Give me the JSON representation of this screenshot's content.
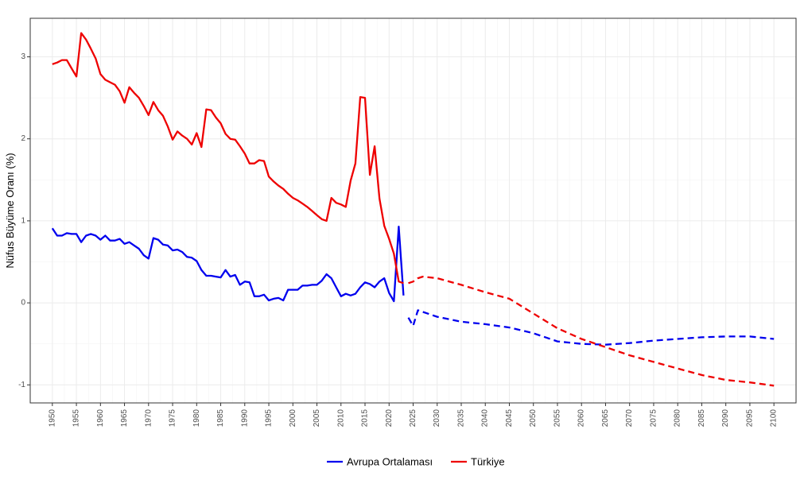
{
  "chart_data": {
    "type": "line",
    "ylabel": "Nüfus Büyüme Oranı (%)",
    "xlabel": "",
    "xlim": [
      1945.4,
      2104.6
    ],
    "ylim": [
      -1.22,
      3.47
    ],
    "x_ticks": [
      1950,
      1955,
      1960,
      1965,
      1970,
      1975,
      1980,
      1985,
      1990,
      1995,
      2000,
      2005,
      2010,
      2015,
      2020,
      2025,
      2030,
      2035,
      2040,
      2045,
      2050,
      2055,
      2060,
      2065,
      2070,
      2075,
      2080,
      2085,
      2090,
      2095,
      2100
    ],
    "x_tick_labels": [
      "1950",
      "1955",
      "1960",
      "1965",
      "1970",
      "1975",
      "1980",
      "1985",
      "1990",
      "1995",
      "2000",
      "2005",
      "2010",
      "2015",
      "2020",
      "2025",
      "2030",
      "2035",
      "2040",
      "2045",
      "2050",
      "2055",
      "2060",
      "2065",
      "2070",
      "2075",
      "2080",
      "2085",
      "2090",
      "2095",
      "2100"
    ],
    "y_ticks": [
      -1,
      0,
      1,
      2,
      3
    ],
    "y_tick_labels": [
      "-1",
      "0",
      "1",
      "2",
      "3"
    ],
    "grid": true,
    "legend_position": "bottom",
    "colors": {
      "Avrupa Ortalaması": "#0000ee",
      "Türkiye": "#ee0000"
    },
    "series": [
      {
        "name": "Avrupa Ortalaması",
        "historical": {
          "x": [
            1950,
            1951,
            1952,
            1953,
            1954,
            1955,
            1956,
            1957,
            1958,
            1959,
            1960,
            1961,
            1962,
            1963,
            1964,
            1965,
            1966,
            1967,
            1968,
            1969,
            1970,
            1971,
            1972,
            1973,
            1974,
            1975,
            1976,
            1977,
            1978,
            1979,
            1980,
            1981,
            1982,
            1983,
            1984,
            1985,
            1986,
            1987,
            1988,
            1989,
            1990,
            1991,
            1992,
            1993,
            1994,
            1995,
            1996,
            1997,
            1998,
            1999,
            2000,
            2001,
            2002,
            2003,
            2004,
            2005,
            2006,
            2007,
            2008,
            2009,
            2010,
            2011,
            2012,
            2013,
            2014,
            2015,
            2016,
            2017,
            2018,
            2019,
            2020,
            2021,
            2022,
            2023
          ],
          "y": [
            0.91,
            0.82,
            0.82,
            0.85,
            0.84,
            0.84,
            0.74,
            0.82,
            0.84,
            0.82,
            0.77,
            0.82,
            0.76,
            0.76,
            0.78,
            0.72,
            0.74,
            0.7,
            0.66,
            0.58,
            0.54,
            0.79,
            0.77,
            0.71,
            0.7,
            0.64,
            0.65,
            0.62,
            0.56,
            0.55,
            0.51,
            0.4,
            0.33,
            0.33,
            0.32,
            0.31,
            0.4,
            0.32,
            0.34,
            0.22,
            0.26,
            0.25,
            0.08,
            0.08,
            0.1,
            0.03,
            0.05,
            0.06,
            0.03,
            0.16,
            0.16,
            0.16,
            0.21,
            0.21,
            0.22,
            0.22,
            0.27,
            0.35,
            0.3,
            0.19,
            0.08,
            0.11,
            0.09,
            0.11,
            0.19,
            0.25,
            0.23,
            0.19,
            0.26,
            0.3,
            0.12,
            0.02,
            0.93,
            0.09
          ]
        },
        "projection": {
          "x": [
            2024,
            2025,
            2026,
            2030,
            2035,
            2040,
            2045,
            2050,
            2055,
            2060,
            2065,
            2070,
            2075,
            2080,
            2085,
            2090,
            2095,
            2100
          ],
          "y": [
            -0.18,
            -0.28,
            -0.09,
            -0.17,
            -0.23,
            -0.26,
            -0.3,
            -0.37,
            -0.47,
            -0.5,
            -0.51,
            -0.49,
            -0.46,
            -0.44,
            -0.42,
            -0.41,
            -0.41,
            -0.44
          ]
        }
      },
      {
        "name": "Türkiye",
        "historical": {
          "x": [
            1950,
            1951,
            1952,
            1953,
            1954,
            1955,
            1956,
            1957,
            1958,
            1959,
            1960,
            1961,
            1962,
            1963,
            1964,
            1965,
            1966,
            1967,
            1968,
            1969,
            1970,
            1971,
            1972,
            1973,
            1974,
            1975,
            1976,
            1977,
            1978,
            1979,
            1980,
            1981,
            1982,
            1983,
            1984,
            1985,
            1986,
            1987,
            1988,
            1989,
            1990,
            1991,
            1992,
            1993,
            1994,
            1995,
            1996,
            1997,
            1998,
            1999,
            2000,
            2001,
            2002,
            2003,
            2004,
            2005,
            2006,
            2007,
            2008,
            2009,
            2010,
            2011,
            2012,
            2013,
            2014,
            2015,
            2016,
            2017,
            2018,
            2019,
            2020,
            2021,
            2022,
            2023
          ],
          "y": [
            2.91,
            2.93,
            2.96,
            2.96,
            2.86,
            2.76,
            3.29,
            3.21,
            3.1,
            2.98,
            2.79,
            2.72,
            2.69,
            2.66,
            2.58,
            2.44,
            2.63,
            2.56,
            2.5,
            2.4,
            2.29,
            2.45,
            2.35,
            2.28,
            2.15,
            1.99,
            2.09,
            2.04,
            2.0,
            1.93,
            2.07,
            1.9,
            2.36,
            2.35,
            2.26,
            2.19,
            2.06,
            2.0,
            1.99,
            1.91,
            1.82,
            1.7,
            1.7,
            1.74,
            1.73,
            1.54,
            1.48,
            1.43,
            1.39,
            1.33,
            1.28,
            1.25,
            1.21,
            1.17,
            1.12,
            1.07,
            1.02,
            1.0,
            1.28,
            1.22,
            1.2,
            1.17,
            1.49,
            1.7,
            2.51,
            2.5,
            1.56,
            1.91,
            1.27,
            0.94,
            0.78,
            0.6,
            0.26,
            0.24
          ]
        },
        "projection": {
          "x": [
            2024,
            2025,
            2026,
            2027,
            2030,
            2035,
            2040,
            2045,
            2050,
            2055,
            2060,
            2065,
            2070,
            2075,
            2080,
            2085,
            2090,
            2095,
            2100
          ],
          "y": [
            0.24,
            0.26,
            0.3,
            0.32,
            0.3,
            0.22,
            0.13,
            0.05,
            -0.13,
            -0.31,
            -0.44,
            -0.54,
            -0.64,
            -0.72,
            -0.8,
            -0.88,
            -0.94,
            -0.97,
            -1.01
          ]
        }
      }
    ]
  }
}
